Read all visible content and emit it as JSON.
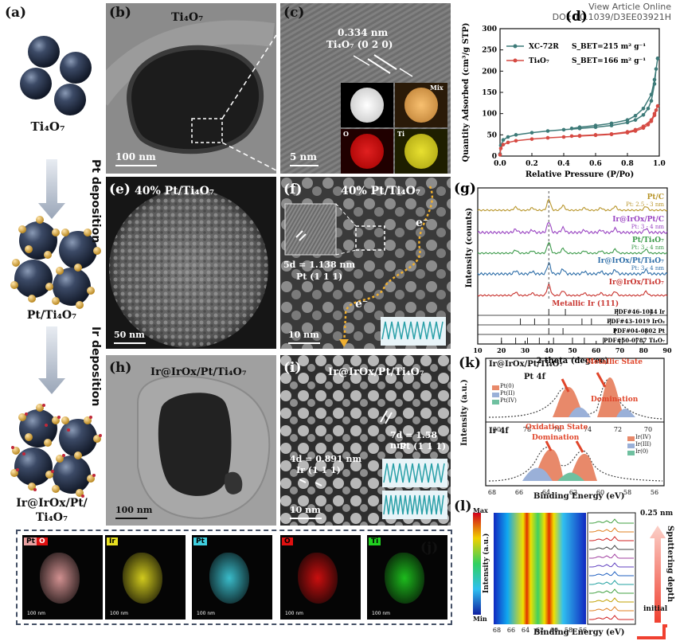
{
  "header": {
    "line1": "View Article Online",
    "line2": "DOI: 10.1039/D3EE03921H"
  },
  "panels": {
    "a": {
      "label": "(a)",
      "ti4o7": "Ti₄O₇",
      "step1": "Pt deposition",
      "mid": "Pt/Ti₄O₇",
      "step2": "Ir deposition",
      "final1": "Ir@IrOx/Pt/",
      "final2": "Ti₄O₇"
    },
    "b": {
      "label": "(b)",
      "title": "Ti₄O₇",
      "scale": "100 nm"
    },
    "c": {
      "label": "(c)",
      "spacing": "0.334 nm",
      "plane": "Ti₄O₇ (0 2 0)",
      "scale": "5 nm",
      "map_mix": "Mix",
      "map_o": "O",
      "map_ti": "Ti"
    },
    "e": {
      "label": "(e)",
      "title": "40% Pt/Ti₄O₇",
      "scale": "50 nm"
    },
    "f": {
      "label": "(f)",
      "title": "40% Pt/Ti₄O₇",
      "spacing": "5d = 1.138 nm",
      "plane": "Pt (1 1 1)",
      "e1": "e⁻",
      "e2": "e⁻",
      "scale": "10 nm"
    },
    "h": {
      "label": "(h)",
      "title": "Ir@IrOx/Pt/Ti₄O₇",
      "scale": "100 nm"
    },
    "i": {
      "label": "(i)",
      "title": "Ir@IrOx/Pt/Ti₄O₇",
      "spacing1": "7d = 1.58 nm",
      "plane1": "Pt (1 1 1)",
      "spacing2": "4d = 0.891 nm",
      "plane2": "Ir (1 1 1)",
      "scale": "10 nm"
    },
    "j": {
      "label": "(j)",
      "maps": [
        {
          "tag1": "Pt",
          "tag2": "O",
          "color": "#e8a0a0"
        },
        {
          "tag1": "Ir",
          "tag2": "",
          "color": "#e8e020"
        },
        {
          "tag1": "Pt",
          "tag2": "",
          "color": "#40d0e0"
        },
        {
          "tag1": "O",
          "tag2": "",
          "color": "#e01010"
        },
        {
          "tag1": "Ti",
          "tag2": "",
          "color": "#20d020"
        }
      ],
      "scale": "100 nm"
    },
    "k": {
      "label": "(k)",
      "sample": "Ir@IrOx/Pt/Ti₄O₇",
      "pt4f": "Pt 4f",
      "ir4f": "Ir 4f",
      "metallic": "Metallic State",
      "metallic2": "Domination",
      "oxidation": "Oxidation State",
      "oxidation2": "Domination",
      "legend_pt": [
        "Pt(0)",
        "Pt(II)",
        "Pt(IV)"
      ],
      "legend_ir": [
        "Ir(IV)",
        "Ir(III)",
        "Ir(0)"
      ],
      "ylabel": "Intensity (a.u.)",
      "xlabel": "Binding Energy (eV)"
    },
    "l": {
      "label": "(l)",
      "max": "Max",
      "min": "Min",
      "ylabel": "Intensity (a.u.)",
      "xlabel": "Binding Energy (eV)",
      "depth_label": "0.25 nm",
      "sputter": "Sputtering depth",
      "initial": "initial"
    }
  },
  "chart_data": [
    {
      "type": "line",
      "panel": "(d)",
      "title": "",
      "xlabel": "Relative Pressure (P/Po)",
      "ylabel": "Quantity Adsorbed (cm³/g STP)",
      "xlim": [
        0.0,
        1.0
      ],
      "ylim": [
        0,
        300
      ],
      "xticks": [
        0.0,
        0.2,
        0.4,
        0.6,
        0.8,
        1.0
      ],
      "yticks": [
        0,
        50,
        100,
        150,
        200,
        250,
        300
      ],
      "legend_position": "top-left",
      "series": [
        {
          "name": "XC-72R",
          "note": "S_BET=215 m² g⁻¹",
          "color": "#3d7a78",
          "x": [
            0.0,
            0.005,
            0.02,
            0.05,
            0.1,
            0.2,
            0.3,
            0.4,
            0.5,
            0.6,
            0.7,
            0.8,
            0.85,
            0.9,
            0.93,
            0.95,
            0.97,
            0.98,
            0.99,
            0.99,
            0.97,
            0.95,
            0.9,
            0.85,
            0.8,
            0.7,
            0.6,
            0.5,
            0.45
          ],
          "y": [
            5,
            25,
            38,
            45,
            50,
            55,
            59,
            62,
            65,
            68,
            72,
            79,
            85,
            97,
            112,
            130,
            170,
            205,
            230,
            230,
            180,
            145,
            112,
            95,
            85,
            77,
            72,
            68,
            65
          ]
        },
        {
          "name": "Ti₄O₇",
          "note": "S_BET=166 m² g⁻¹",
          "color": "#d64a43",
          "x": [
            0.0,
            0.005,
            0.02,
            0.05,
            0.1,
            0.2,
            0.3,
            0.4,
            0.5,
            0.6,
            0.7,
            0.8,
            0.85,
            0.9,
            0.93,
            0.95,
            0.97,
            0.98,
            0.99,
            0.97,
            0.95,
            0.9,
            0.85,
            0.8,
            0.7,
            0.6,
            0.5,
            0.45
          ],
          "y": [
            3,
            18,
            27,
            32,
            36,
            40,
            43,
            45,
            47,
            49,
            51,
            55,
            59,
            66,
            74,
            82,
            96,
            108,
            118,
            100,
            85,
            70,
            62,
            57,
            52,
            50,
            48,
            47
          ]
        }
      ]
    },
    {
      "type": "line",
      "panel": "(g)",
      "title": "",
      "xlabel": "2 theta (degree)",
      "ylabel": "Intensity (counts)",
      "xlim": [
        10,
        90
      ],
      "xticks": [
        10,
        20,
        30,
        40,
        50,
        60,
        70,
        80,
        90
      ],
      "series": [
        {
          "name": "Pt/C",
          "note": "Pt: 2.5 - 3 nm",
          "color": "#b8952a"
        },
        {
          "name": "Ir@IrOx/Pt/C",
          "note": "Pt: 3 - 4 nm",
          "color": "#9a45c2"
        },
        {
          "name": "Pt/Ti₄O₇",
          "note": "Pt: 3 - 4 nm",
          "color": "#3c9a4a"
        },
        {
          "name": "Ir@IrOx/Pt/Ti₄O₇",
          "note": "Pt: 3 - 4 nm",
          "color": "#2e6ea8"
        },
        {
          "name": "Ir@IrOx/Ti₄O₇",
          "note": "",
          "color": "#c8332e"
        }
      ],
      "annotations": [
        "Metallic Ir (111)",
        "PDF#46-1044 Ir",
        "PDF#43-1019 IrO₂",
        "PDF#04-0802 Pt",
        "PDF#50-0787 Ti₄O₇"
      ]
    }
  ]
}
